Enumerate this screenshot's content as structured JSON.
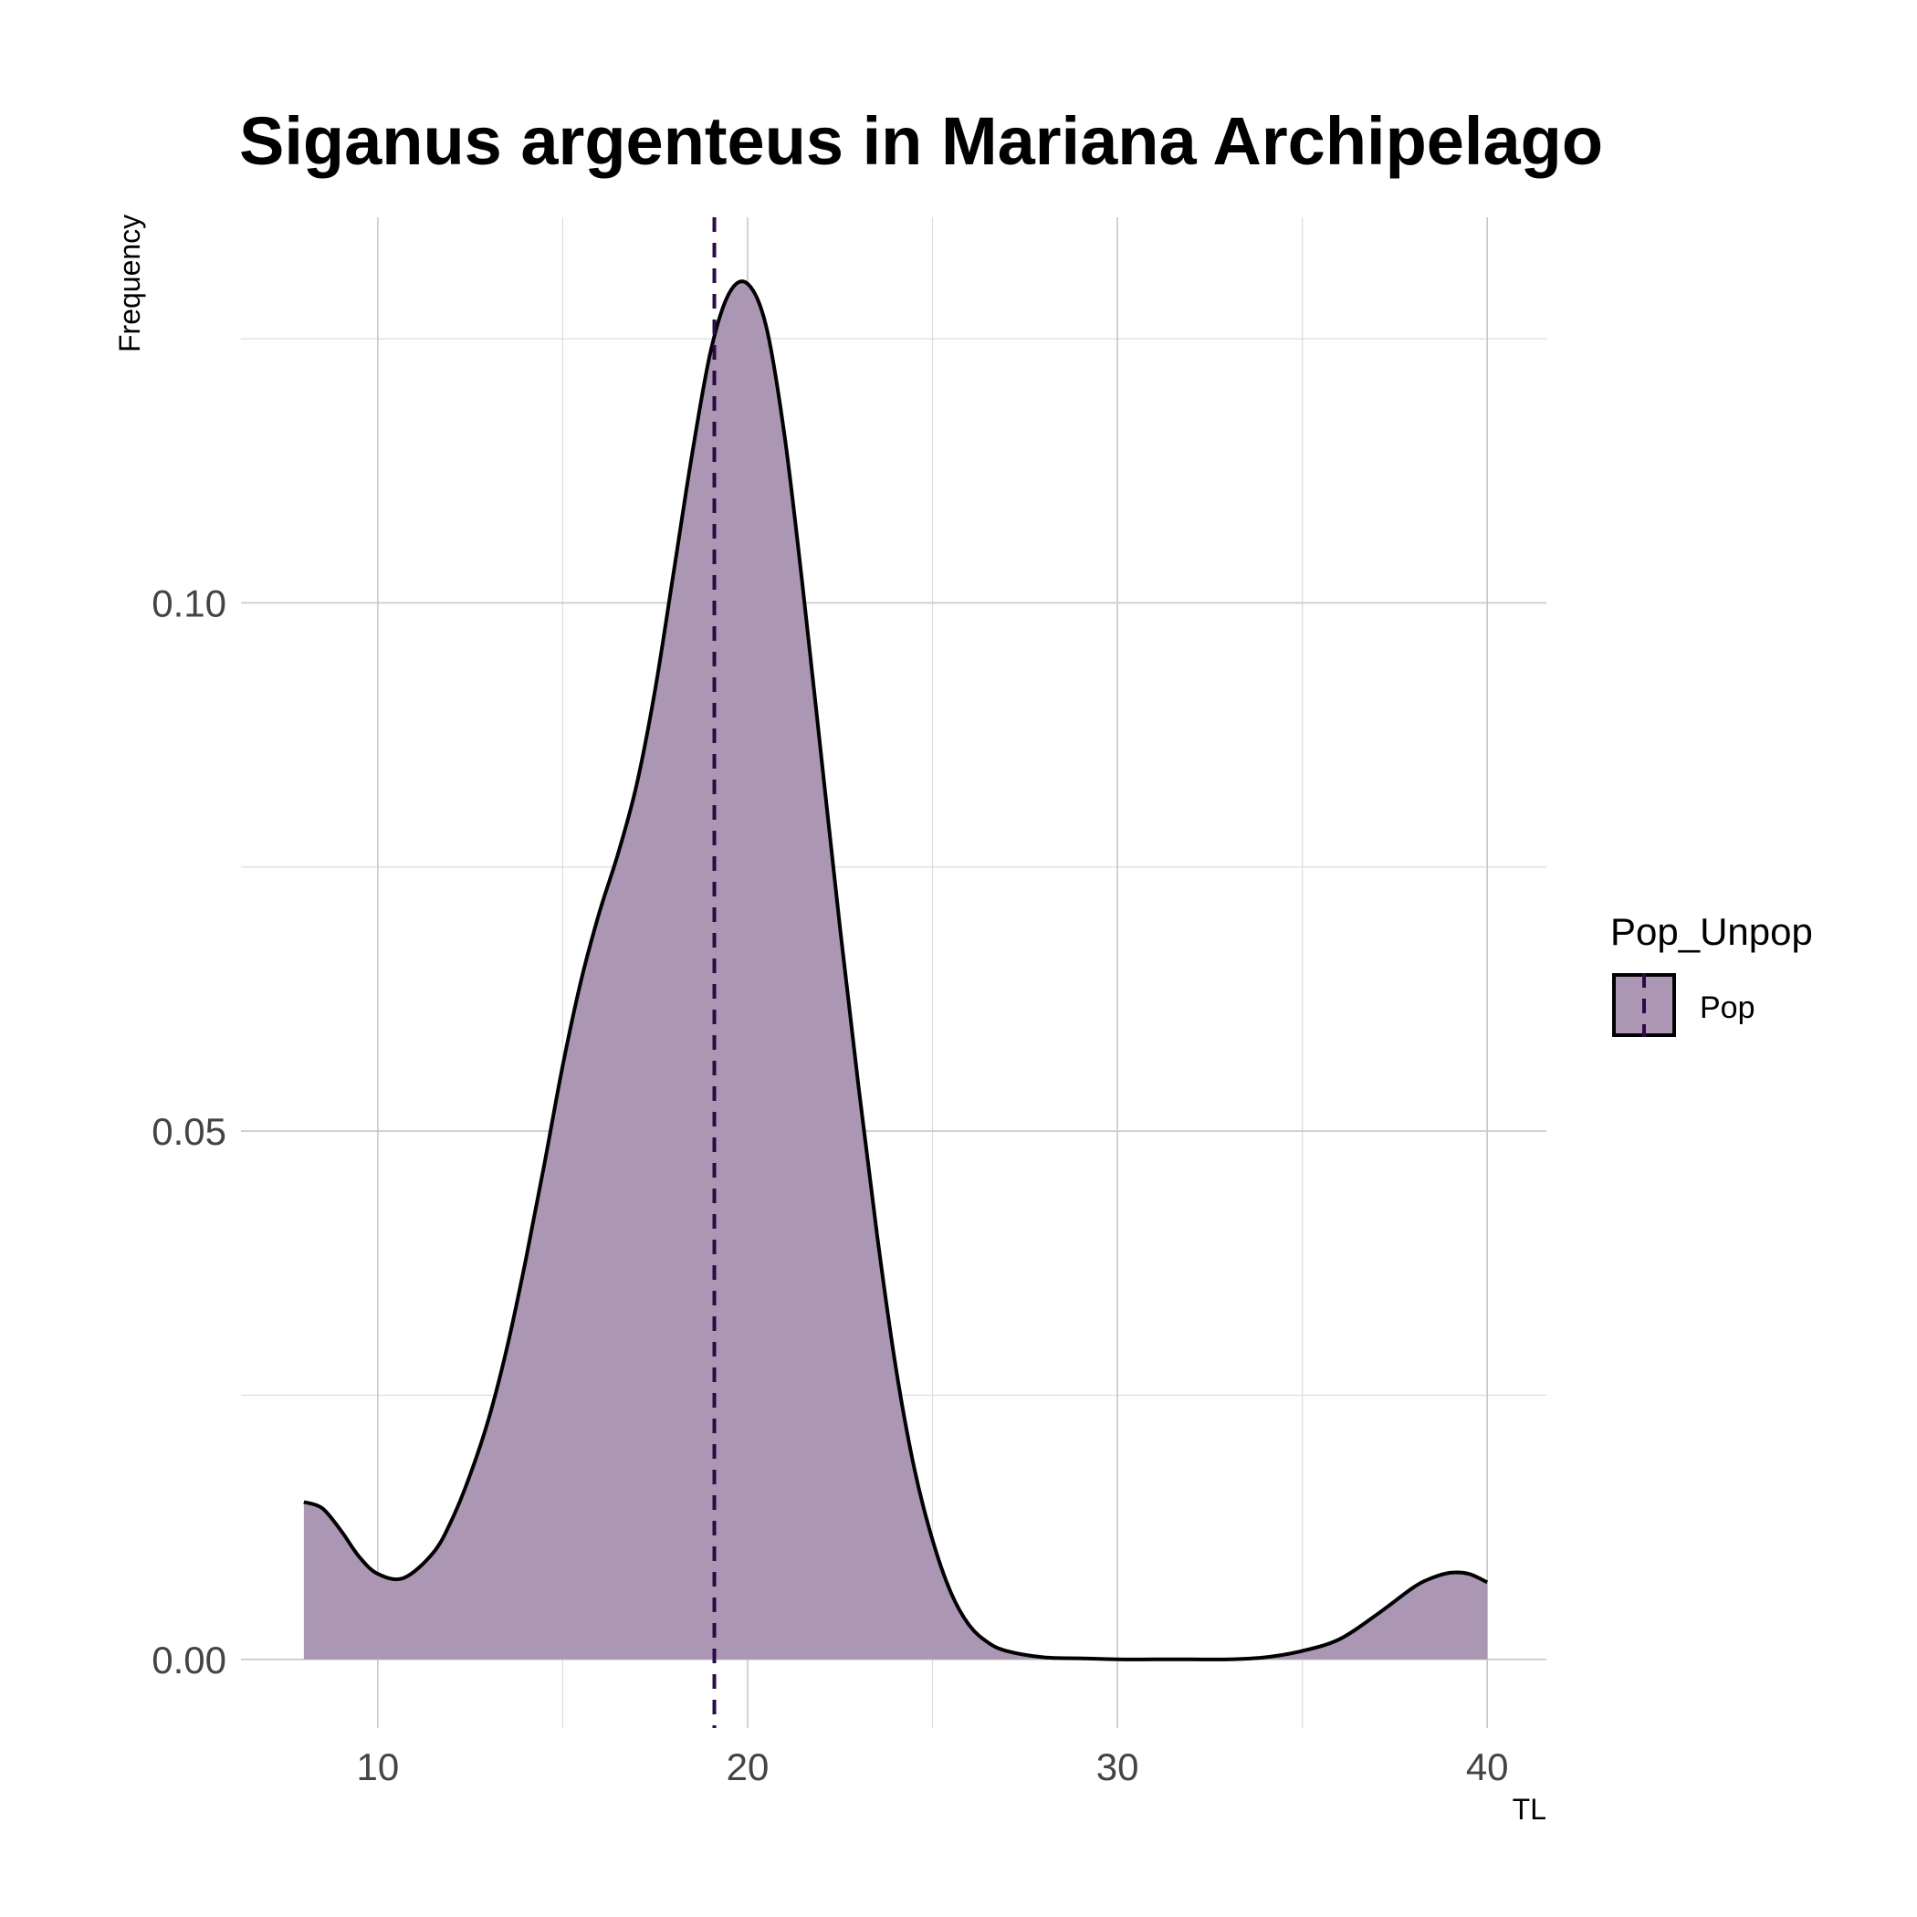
{
  "colors": {
    "fill": "#ab97b4",
    "outline": "#000000",
    "mean_line": "#2c0a45",
    "grid": "#c8c8c8"
  },
  "chart_data": {
    "type": "area",
    "subtype": "density",
    "title": "Siganus argenteus in Mariana Archipelago",
    "xlabel": "TL",
    "ylabel": "Frequency",
    "xlim": [
      6.3,
      41.6
    ],
    "ylim": [
      -0.0065,
      0.1365
    ],
    "x_ticks": [
      10,
      20,
      30,
      40
    ],
    "x_tick_labels": [
      "10",
      "20",
      "30",
      "40"
    ],
    "y_ticks": [
      0,
      0.05,
      0.1
    ],
    "y_tick_labels": [
      "0.00",
      "0.05",
      "0.10"
    ],
    "grid": true,
    "legend": {
      "title": "Pop_Unpop",
      "position": "right",
      "entries": [
        "Pop"
      ]
    },
    "mean_line": {
      "x": 19.1,
      "style": "dashed"
    },
    "series": [
      {
        "name": "Pop",
        "x": [
          8,
          8.5,
          9,
          9.5,
          10,
          10.7,
          11.5,
          12,
          12.5,
          13,
          13.5,
          14,
          14.5,
          15,
          15.5,
          16,
          16.5,
          17,
          17.5,
          18,
          18.5,
          19,
          19.5,
          20,
          20.5,
          21,
          21.5,
          22,
          22.5,
          23,
          23.5,
          24,
          24.5,
          25,
          25.5,
          26,
          26.5,
          27,
          28,
          29,
          30,
          31,
          32,
          33,
          34,
          35,
          36,
          37,
          38,
          38.5,
          39,
          39.5,
          40
        ],
        "y": [
          0.0149,
          0.0143,
          0.0122,
          0.0097,
          0.0081,
          0.0077,
          0.0101,
          0.0132,
          0.0175,
          0.0228,
          0.0296,
          0.0378,
          0.0468,
          0.0562,
          0.0643,
          0.0708,
          0.0763,
          0.0828,
          0.0918,
          0.1029,
          0.1141,
          0.1238,
          0.1293,
          0.1302,
          0.1262,
          0.1158,
          0.1012,
          0.0852,
          0.0692,
          0.0542,
          0.0402,
          0.0278,
          0.0182,
          0.0113,
          0.0063,
          0.0032,
          0.0016,
          0.0008,
          0.0002,
          0.0001,
          0.0,
          0.0,
          0.0,
          0.0,
          0.0002,
          0.0008,
          0.0019,
          0.0042,
          0.0068,
          0.0077,
          0.0082,
          0.0081,
          0.0073
        ]
      }
    ]
  }
}
